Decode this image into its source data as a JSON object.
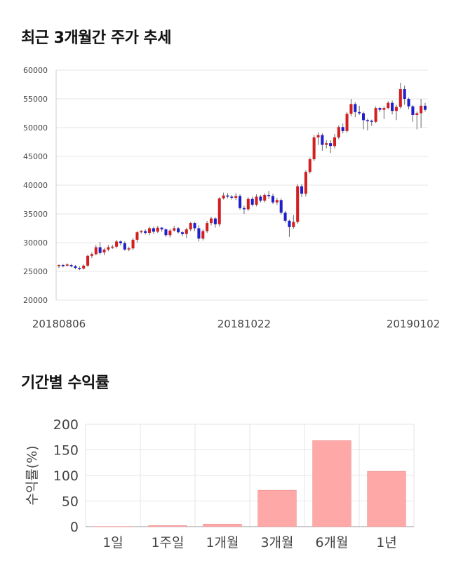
{
  "sections": {
    "price_title": "최근 3개월간 주가 추세",
    "return_title": "기간별 수익률"
  },
  "chart_data": [
    {
      "type": "candlestick",
      "title": "최근 3개월간 주가 추세",
      "ylim": [
        20000,
        60000
      ],
      "yticks": [
        "60000",
        "55000",
        "50000",
        "45000",
        "40000",
        "35000",
        "30000",
        "25000",
        "20000"
      ],
      "ytick_values": [
        60000,
        55000,
        50000,
        45000,
        40000,
        35000,
        30000,
        25000,
        20000
      ],
      "xtick_labels": [
        "20180806",
        "20181022",
        "20190102"
      ],
      "xtick_index": [
        0,
        45,
        90
      ],
      "grid": true,
      "colors": {
        "up": "#d21f1f",
        "down": "#1f1fcc",
        "wick": "#666666",
        "grid": "#e6e6e6"
      },
      "candles": [
        [
          26000,
          26100,
          25600,
          26200
        ],
        [
          26100,
          26000,
          25700,
          26300
        ],
        [
          26000,
          26200,
          25800,
          26400
        ],
        [
          26100,
          25900,
          25700,
          26300
        ],
        [
          25900,
          25600,
          25400,
          26100
        ],
        [
          25600,
          25500,
          25200,
          25900
        ],
        [
          25500,
          26000,
          25300,
          26200
        ],
        [
          26000,
          27700,
          25800,
          27900
        ],
        [
          27700,
          28000,
          27300,
          28300
        ],
        [
          28000,
          29200,
          27800,
          29600
        ],
        [
          29200,
          28200,
          27900,
          30100
        ],
        [
          28300,
          28800,
          27800,
          29100
        ],
        [
          28800,
          29200,
          28500,
          29600
        ],
        [
          29200,
          29300,
          28900,
          29600
        ],
        [
          29300,
          30200,
          29000,
          30500
        ],
        [
          30200,
          29900,
          29500,
          30400
        ],
        [
          29900,
          28800,
          28600,
          30200
        ],
        [
          28800,
          29000,
          28500,
          29300
        ],
        [
          29000,
          30500,
          28700,
          30800
        ],
        [
          30500,
          31800,
          30000,
          32000
        ],
        [
          31800,
          32000,
          31600,
          32200
        ],
        [
          32000,
          31700,
          31400,
          32300
        ],
        [
          31700,
          32500,
          31300,
          32800
        ],
        [
          32500,
          31900,
          31500,
          32800
        ],
        [
          31900,
          32600,
          31700,
          32900
        ],
        [
          32600,
          32300,
          31900,
          32700
        ],
        [
          32300,
          31300,
          31000,
          32500
        ],
        [
          31300,
          32100,
          30900,
          32400
        ],
        [
          32100,
          32500,
          31900,
          32900
        ],
        [
          32500,
          31800,
          31600,
          32700
        ],
        [
          31800,
          31500,
          31100,
          32000
        ],
        [
          31500,
          32300,
          30800,
          32600
        ],
        [
          32300,
          33400,
          32000,
          33600
        ],
        [
          33400,
          32500,
          32000,
          33600
        ],
        [
          32500,
          30700,
          30200,
          33000
        ],
        [
          30700,
          32000,
          30400,
          32300
        ],
        [
          32000,
          33400,
          31700,
          33800
        ],
        [
          33400,
          34200,
          33000,
          34500
        ],
        [
          34200,
          33200,
          32600,
          34400
        ],
        [
          33200,
          37700,
          32800,
          37900
        ],
        [
          37700,
          38200,
          37500,
          38700
        ],
        [
          38200,
          38000,
          37700,
          38600
        ],
        [
          38000,
          37800,
          37500,
          38300
        ],
        [
          37800,
          38100,
          37400,
          38600
        ],
        [
          38100,
          36000,
          35700,
          38400
        ],
        [
          36000,
          35800,
          35000,
          36400
        ],
        [
          35800,
          37600,
          35500,
          37900
        ],
        [
          37600,
          36600,
          36300,
          38000
        ],
        [
          36600,
          38000,
          36300,
          38400
        ],
        [
          38000,
          37300,
          37000,
          38300
        ],
        [
          37300,
          38300,
          37000,
          38600
        ],
        [
          38300,
          38100,
          37600,
          39000
        ],
        [
          38100,
          37000,
          36700,
          38500
        ],
        [
          37000,
          37400,
          36600,
          37800
        ],
        [
          37400,
          35200,
          34900,
          37700
        ],
        [
          35200,
          33800,
          33500,
          35500
        ],
        [
          33800,
          32700,
          31000,
          34000
        ],
        [
          32700,
          33600,
          32400,
          34800
        ],
        [
          33600,
          39800,
          33300,
          40200
        ],
        [
          39800,
          38500,
          37900,
          40200
        ],
        [
          38500,
          42300,
          38000,
          42600
        ],
        [
          42300,
          44500,
          42000,
          44800
        ],
        [
          44500,
          48300,
          44200,
          48700
        ],
        [
          48300,
          48700,
          47000,
          49200
        ],
        [
          48700,
          47000,
          46000,
          49000
        ],
        [
          47000,
          47300,
          46400,
          47800
        ],
        [
          47300,
          46800,
          45600,
          47800
        ],
        [
          46800,
          48300,
          46400,
          48900
        ],
        [
          48300,
          50100,
          48000,
          50400
        ],
        [
          50100,
          49400,
          49000,
          50700
        ],
        [
          49400,
          52400,
          49100,
          52700
        ],
        [
          52400,
          54100,
          52000,
          55000
        ],
        [
          54100,
          52700,
          51800,
          54400
        ],
        [
          52700,
          52500,
          52200,
          53800
        ],
        [
          52500,
          51300,
          49700,
          52800
        ],
        [
          51300,
          51200,
          49500,
          51600
        ],
        [
          51200,
          51000,
          50300,
          51400
        ],
        [
          51000,
          53400,
          50800,
          53700
        ],
        [
          53400,
          53100,
          52700,
          53600
        ],
        [
          53100,
          53400,
          51500,
          53700
        ],
        [
          53400,
          54300,
          53200,
          54600
        ],
        [
          54300,
          52900,
          52300,
          54700
        ],
        [
          52900,
          53600,
          51300,
          54000
        ],
        [
          53600,
          56700,
          53300,
          57800
        ],
        [
          56700,
          55000,
          54000,
          57300
        ],
        [
          55000,
          53700,
          53200,
          55200
        ],
        [
          53700,
          52200,
          51000,
          53900
        ],
        [
          52200,
          52500,
          49700,
          52800
        ],
        [
          52500,
          53800,
          50000,
          55000
        ],
        [
          53800,
          53100,
          52800,
          54300
        ]
      ]
    },
    {
      "type": "bar",
      "title": "기간별 수익률",
      "ylabel": "수익률(%)",
      "ylim": [
        0,
        200
      ],
      "yticks": [
        "200",
        "150",
        "100",
        "50",
        "0"
      ],
      "ytick_values": [
        200,
        150,
        100,
        50,
        0
      ],
      "categories": [
        "1일",
        "1주일",
        "1개월",
        "3개월",
        "6개월",
        "1년"
      ],
      "values": [
        0.3,
        2,
        5,
        71,
        168,
        108
      ],
      "grid": true,
      "colors": {
        "bar": "#ffa8a8",
        "bar_edge": "#e88888",
        "grid": "#e6e6e6"
      }
    }
  ]
}
